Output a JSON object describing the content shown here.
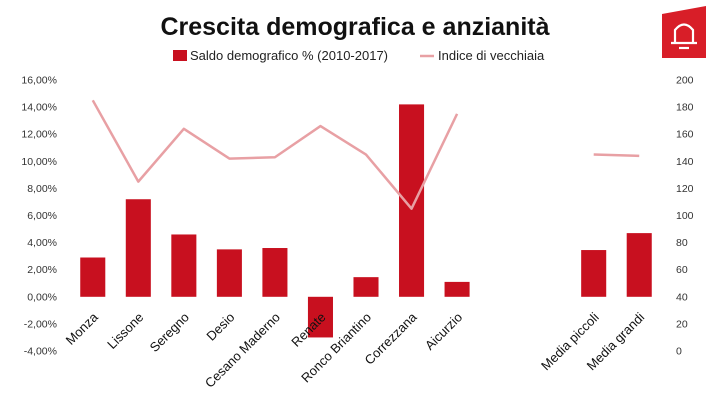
{
  "chart_data": {
    "type": "bar",
    "title": "Crescita demografica e anzianità",
    "categories": [
      "Monza",
      "Lissone",
      "Seregno",
      "Desio",
      "Cesano Maderno",
      "Renate",
      "Ronco Briantino",
      "Correzzana",
      "Aicurzio",
      "",
      "",
      "Media piccoli",
      "Media grandi"
    ],
    "series": [
      {
        "name": "Saldo demografico % (2010-2017)",
        "type": "bar",
        "axis": "left",
        "color": "#c8101f",
        "values": [
          2.9,
          7.2,
          4.6,
          3.5,
          3.6,
          -3.0,
          1.45,
          14.2,
          1.1,
          null,
          null,
          3.45,
          4.7
        ]
      },
      {
        "name": "Indice di vecchiaia",
        "type": "line",
        "axis": "right",
        "color": "#e8a0a4",
        "values": [
          185,
          125,
          164,
          142,
          143,
          166,
          145,
          105,
          175,
          null,
          null,
          145,
          144
        ]
      }
    ],
    "y_left": {
      "min": -4,
      "max": 16,
      "step": 2,
      "tick_labels": [
        "-4,00%",
        "-2,00%",
        "0,00%",
        "2,00%",
        "4,00%",
        "6,00%",
        "8,00%",
        "10,00%",
        "12,00%",
        "14,00%",
        "16,00%"
      ]
    },
    "y_right": {
      "min": 0,
      "max": 200,
      "step": 20,
      "tick_labels": [
        "0",
        "20",
        "40",
        "60",
        "80",
        "100",
        "120",
        "140",
        "160",
        "180",
        "200"
      ]
    },
    "legend_position": "top-center",
    "grid": false
  },
  "logo": {
    "icon": "bell-logo-icon",
    "color": "#d81e28"
  }
}
